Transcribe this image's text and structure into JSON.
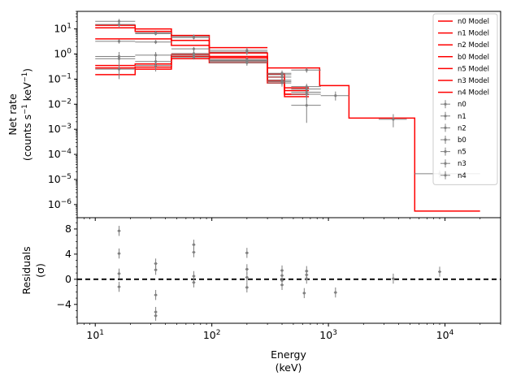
{
  "chart_data": {
    "type": "step-spectrum",
    "x_scale": "log",
    "xlim": [
      7,
      30000
    ],
    "xlabel_line1": "Energy",
    "xlabel_line2": "(keV)",
    "x_ticks": [
      {
        "value": 10,
        "base": "10",
        "exp": "1"
      },
      {
        "value": 100,
        "base": "10",
        "exp": "2"
      },
      {
        "value": 1000,
        "base": "10",
        "exp": "3"
      },
      {
        "value": 10000,
        "base": "10",
        "exp": "4"
      }
    ],
    "top": {
      "y_scale": "log",
      "ylim": [
        3e-07,
        50
      ],
      "ylabel_line1": "Net rate",
      "ylabel_line2_pre": "(counts s",
      "ylabel_sup1": "−1",
      "ylabel_mid": " keV",
      "ylabel_sup2": "−1",
      "ylabel_post": ")",
      "y_ticks": [
        {
          "value": 10,
          "base": "10",
          "exp": "1"
        },
        {
          "value": 1,
          "base": "10",
          "exp": "0"
        },
        {
          "value": 0.1,
          "base": "10",
          "exp": "−1"
        },
        {
          "value": 0.01,
          "base": "10",
          "exp": "−2"
        },
        {
          "value": 0.001,
          "base": "10",
          "exp": "−3"
        },
        {
          "value": 0.0001,
          "base": "10",
          "exp": "−4"
        },
        {
          "value": 1e-05,
          "base": "10",
          "exp": "−5"
        },
        {
          "value": 1e-06,
          "base": "10",
          "exp": "−6"
        }
      ],
      "model_color": "#ff0000",
      "data_color": "#808080",
      "legend_position": "top-right",
      "models": [
        {
          "name": "n0 Model",
          "edges": [
            10,
            22,
            45,
            95,
            300
          ],
          "values": [
            14,
            10,
            5.5,
            1.8
          ]
        },
        {
          "name": "n1 Model",
          "edges": [
            10,
            22,
            45,
            95,
            300,
            420,
            680
          ],
          "values": [
            11,
            8,
            3.5,
            1.1,
            0.16,
            0.045
          ]
        },
        {
          "name": "n2 Model",
          "edges": [
            10,
            22,
            45,
            95,
            300,
            420,
            680
          ],
          "values": [
            4,
            4,
            2.2,
            0.8,
            0.12,
            0.035
          ]
        },
        {
          "name": "b0 Model",
          "edges": [
            300,
            420,
            840,
            1500,
            5500,
            20000
          ],
          "values": [
            0.28,
            0.28,
            0.055,
            0.0028,
            5.5e-07
          ]
        },
        {
          "name": "n5 Model",
          "edges": [
            10,
            22,
            45,
            95,
            300,
            420,
            680
          ],
          "values": [
            0.35,
            0.4,
            0.95,
            0.7,
            0.09,
            0.025
          ]
        },
        {
          "name": "n3 Model",
          "edges": [
            10,
            22,
            45,
            95,
            300,
            420,
            680
          ],
          "values": [
            0.28,
            0.3,
            0.8,
            0.55,
            0.07,
            0.02
          ]
        },
        {
          "name": "n4 Model",
          "edges": [
            10,
            22,
            45,
            95,
            300,
            420,
            680
          ],
          "values": [
            0.15,
            0.25,
            0.65,
            0.45,
            0.08,
            0.025
          ]
        }
      ],
      "data_series": [
        {
          "name": "n0",
          "points": [
            {
              "x": 16,
              "xlo": 10,
              "xhi": 22,
              "y": 20,
              "ylo": 16,
              "yhi": 25
            },
            {
              "x": 33,
              "xlo": 22,
              "xhi": 45,
              "y": 6.5,
              "ylo": 5.5,
              "yhi": 8
            },
            {
              "x": 70,
              "xlo": 45,
              "xhi": 95,
              "y": 5,
              "ylo": 4,
              "yhi": 6
            },
            {
              "x": 200,
              "xlo": 95,
              "xhi": 300,
              "y": 1.2,
              "ylo": 0.9,
              "yhi": 1.6
            }
          ]
        },
        {
          "name": "n1",
          "points": [
            {
              "x": 16,
              "xlo": 10,
              "xhi": 22,
              "y": 15,
              "ylo": 12,
              "yhi": 18
            },
            {
              "x": 33,
              "xlo": 22,
              "xhi": 45,
              "y": 7,
              "ylo": 6,
              "yhi": 8.5
            },
            {
              "x": 70,
              "xlo": 45,
              "xhi": 95,
              "y": 4.5,
              "ylo": 3.8,
              "yhi": 5.4
            },
            {
              "x": 200,
              "xlo": 95,
              "xhi": 300,
              "y": 1.4,
              "ylo": 1.1,
              "yhi": 1.8
            },
            {
              "x": 400,
              "xlo": 300,
              "xhi": 480,
              "y": 0.17,
              "ylo": 0.12,
              "yhi": 0.22
            },
            {
              "x": 650,
              "xlo": 480,
              "xhi": 860,
              "y": 0.23,
              "ylo": 0.18,
              "yhi": 0.28
            }
          ]
        },
        {
          "name": "n2",
          "points": [
            {
              "x": 16,
              "xlo": 10,
              "xhi": 22,
              "y": 3.2,
              "ylo": 2.6,
              "yhi": 3.8
            },
            {
              "x": 33,
              "xlo": 22,
              "xhi": 45,
              "y": 3,
              "ylo": 2.5,
              "yhi": 3.6
            },
            {
              "x": 70,
              "xlo": 45,
              "xhi": 95,
              "y": 1.6,
              "ylo": 1.3,
              "yhi": 1.9
            },
            {
              "x": 200,
              "xlo": 95,
              "xhi": 300,
              "y": 0.55,
              "ylo": 0.4,
              "yhi": 0.7
            },
            {
              "x": 400,
              "xlo": 300,
              "xhi": 480,
              "y": 0.12,
              "ylo": 0.09,
              "yhi": 0.15
            },
            {
              "x": 650,
              "xlo": 480,
              "xhi": 860,
              "y": 0.05,
              "ylo": 0.035,
              "yhi": 0.065
            }
          ]
        },
        {
          "name": "b0",
          "points": [
            {
              "x": 400,
              "xlo": 300,
              "xhi": 480,
              "y": 0.15,
              "ylo": 0.1,
              "yhi": 0.2
            },
            {
              "x": 650,
              "xlo": 480,
              "xhi": 860,
              "y": 0.04,
              "ylo": 0.025,
              "yhi": 0.055
            },
            {
              "x": 1150,
              "xlo": 860,
              "xhi": 1500,
              "y": 0.022,
              "ylo": 0.014,
              "yhi": 0.032
            },
            {
              "x": 3600,
              "xlo": 2700,
              "xhi": 4700,
              "y": 0.0025,
              "ylo": 0.0012,
              "yhi": 0.004
            },
            {
              "x": 9000,
              "xlo": 5500,
              "xhi": 20000,
              "y": 1.7e-05,
              "ylo": 1.2e-05,
              "yhi": 2.3e-05
            }
          ]
        },
        {
          "name": "n5",
          "points": [
            {
              "x": 16,
              "xlo": 10,
              "xhi": 22,
              "y": 0.8,
              "ylo": 0.4,
              "yhi": 1.2
            },
            {
              "x": 33,
              "xlo": 22,
              "xhi": 45,
              "y": 0.9,
              "ylo": 0.6,
              "yhi": 1.2
            },
            {
              "x": 70,
              "xlo": 45,
              "xhi": 95,
              "y": 1.05,
              "ylo": 0.85,
              "yhi": 1.3
            },
            {
              "x": 200,
              "xlo": 95,
              "xhi": 300,
              "y": 0.6,
              "ylo": 0.45,
              "yhi": 0.75
            },
            {
              "x": 400,
              "xlo": 300,
              "xhi": 480,
              "y": 0.09,
              "ylo": 0.065,
              "yhi": 0.115
            },
            {
              "x": 650,
              "xlo": 480,
              "xhi": 860,
              "y": 0.025,
              "ylo": 0.015,
              "yhi": 0.035
            }
          ]
        },
        {
          "name": "n3",
          "points": [
            {
              "x": 16,
              "xlo": 10,
              "xhi": 22,
              "y": 0.65,
              "ylo": 0.3,
              "yhi": 1.0
            },
            {
              "x": 33,
              "xlo": 22,
              "xhi": 45,
              "y": 0.5,
              "ylo": 0.3,
              "yhi": 0.7
            },
            {
              "x": 70,
              "xlo": 45,
              "xhi": 95,
              "y": 0.9,
              "ylo": 0.7,
              "yhi": 1.1
            },
            {
              "x": 200,
              "xlo": 95,
              "xhi": 300,
              "y": 0.5,
              "ylo": 0.38,
              "yhi": 0.62
            },
            {
              "x": 400,
              "xlo": 300,
              "xhi": 480,
              "y": 0.07,
              "ylo": 0.05,
              "yhi": 0.09
            },
            {
              "x": 650,
              "xlo": 480,
              "xhi": 860,
              "y": 0.009,
              "ylo": 0.0018,
              "yhi": 0.02
            }
          ]
        },
        {
          "name": "n4",
          "points": [
            {
              "x": 16,
              "xlo": 10,
              "xhi": 22,
              "y": 0.25,
              "ylo": 0.1,
              "yhi": 0.45
            },
            {
              "x": 33,
              "xlo": 22,
              "xhi": 45,
              "y": 0.35,
              "ylo": 0.2,
              "yhi": 0.5
            },
            {
              "x": 70,
              "xlo": 45,
              "xhi": 95,
              "y": 0.75,
              "ylo": 0.6,
              "yhi": 0.9
            },
            {
              "x": 200,
              "xlo": 95,
              "xhi": 300,
              "y": 0.45,
              "ylo": 0.34,
              "yhi": 0.56
            },
            {
              "x": 400,
              "xlo": 300,
              "xhi": 480,
              "y": 0.08,
              "ylo": 0.06,
              "yhi": 0.1
            },
            {
              "x": 650,
              "xlo": 480,
              "xhi": 860,
              "y": 0.03,
              "ylo": 0.02,
              "yhi": 0.04
            }
          ]
        }
      ]
    },
    "bottom": {
      "ylim": [
        -7,
        9.8
      ],
      "ylabel_line1": "Residuals",
      "ylabel_line2": "(σ)",
      "y_ticks": [
        {
          "value": 8,
          "label": "8"
        },
        {
          "value": 4,
          "label": "4"
        },
        {
          "value": 0,
          "label": "0"
        },
        {
          "value": -4,
          "label": "−4"
        }
      ],
      "zero_line": true,
      "points": [
        {
          "x": 16,
          "y": 7.7,
          "err": 0.8
        },
        {
          "x": 16,
          "y": 4.1,
          "err": 0.8
        },
        {
          "x": 16,
          "y": 0.9,
          "err": 0.8
        },
        {
          "x": 16,
          "y": -1.2,
          "err": 0.8
        },
        {
          "x": 33,
          "y": 2.5,
          "err": 0.8
        },
        {
          "x": 33,
          "y": 1.5,
          "err": 0.8
        },
        {
          "x": 33,
          "y": -2.5,
          "err": 0.8
        },
        {
          "x": 33,
          "y": -5.2,
          "err": 0.8
        },
        {
          "x": 33,
          "y": -5.8,
          "err": 0.8
        },
        {
          "x": 70,
          "y": 5.5,
          "err": 0.8
        },
        {
          "x": 70,
          "y": 4.3,
          "err": 0.8
        },
        {
          "x": 70,
          "y": 0.5,
          "err": 0.8
        },
        {
          "x": 70,
          "y": -0.5,
          "err": 0.8
        },
        {
          "x": 200,
          "y": 4.2,
          "err": 0.8
        },
        {
          "x": 200,
          "y": 1.6,
          "err": 0.8
        },
        {
          "x": 200,
          "y": 0.3,
          "err": 0.8
        },
        {
          "x": 200,
          "y": -1.3,
          "err": 0.8
        },
        {
          "x": 400,
          "y": 1.4,
          "err": 0.8
        },
        {
          "x": 400,
          "y": 0.6,
          "err": 0.8
        },
        {
          "x": 400,
          "y": -0.2,
          "err": 0.8
        },
        {
          "x": 400,
          "y": -0.9,
          "err": 0.8
        },
        {
          "x": 620,
          "y": -2.2,
          "err": 0.8
        },
        {
          "x": 650,
          "y": 1.3,
          "err": 0.8
        },
        {
          "x": 650,
          "y": 0.7,
          "err": 0.8
        },
        {
          "x": 650,
          "y": 0.1,
          "err": 0.8
        },
        {
          "x": 1150,
          "y": -2.1,
          "err": 0.8
        },
        {
          "x": 3600,
          "y": 0.1,
          "err": 0.8
        },
        {
          "x": 9000,
          "y": 1.2,
          "err": 0.8
        }
      ]
    }
  }
}
